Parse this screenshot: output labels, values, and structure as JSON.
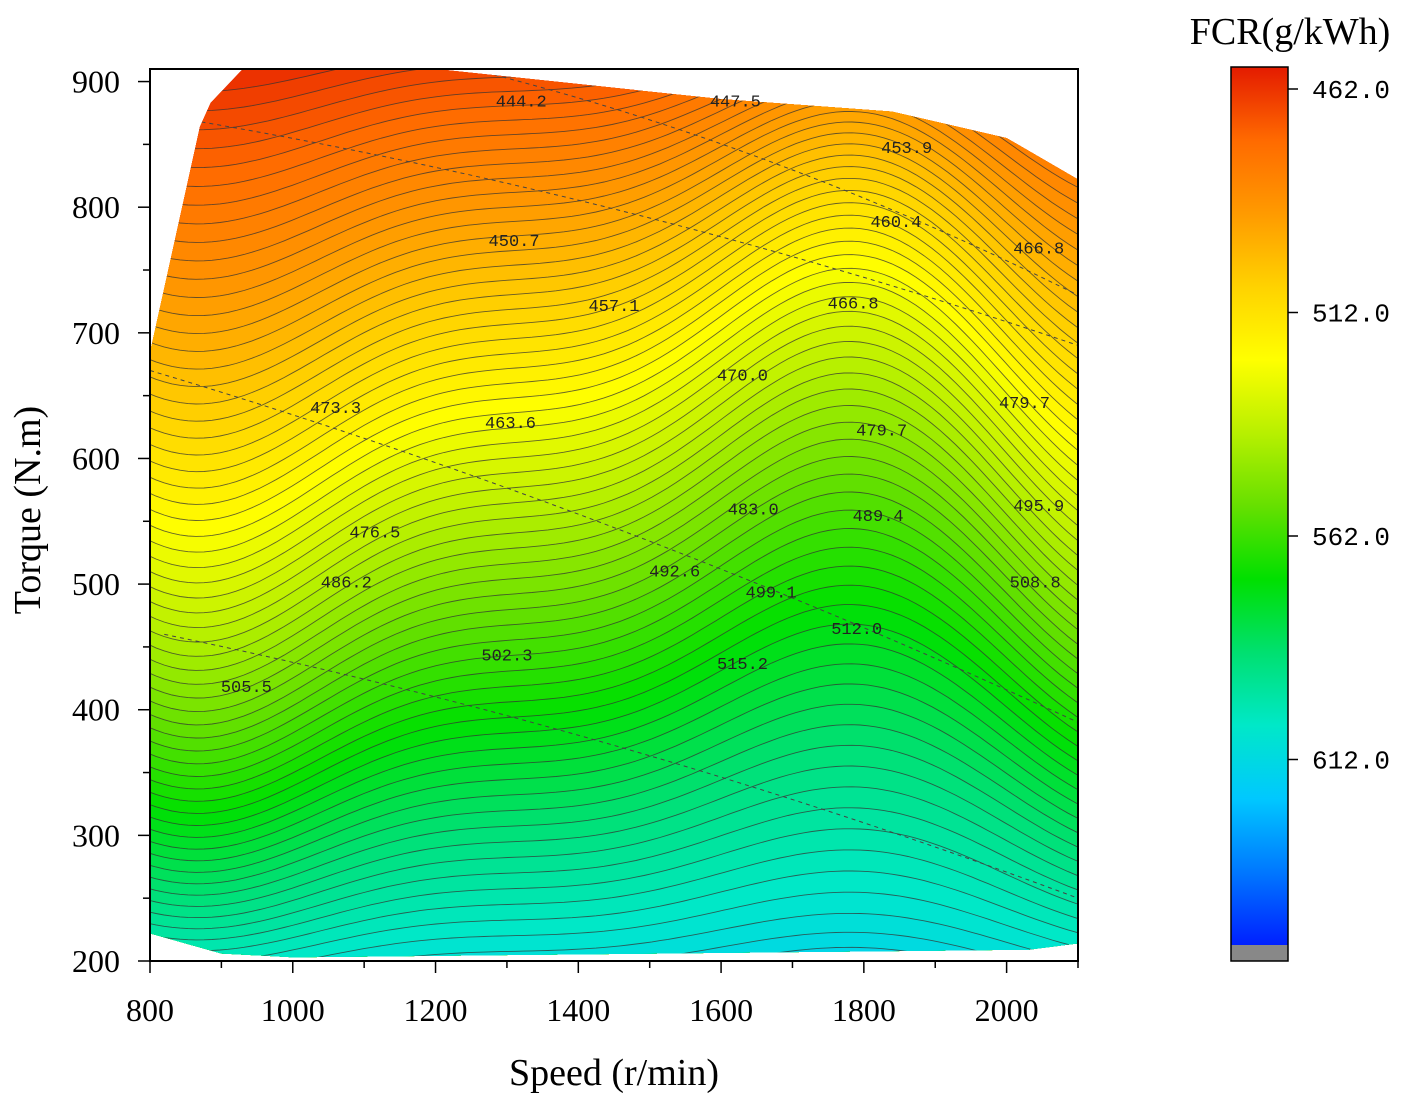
{
  "chart_data": {
    "type": "heatmap",
    "subtype": "filled-contour",
    "xlabel": "Speed (r/min)",
    "ylabel": "Torque (N.m)",
    "xlim": [
      800,
      2100
    ],
    "ylim": [
      200,
      910
    ],
    "x_ticks": [
      800,
      1000,
      1200,
      1400,
      1600,
      1800,
      2000
    ],
    "y_ticks": [
      200,
      300,
      400,
      500,
      600,
      700,
      800,
      900
    ],
    "colorbar": {
      "title": "FCR(g/kWh)",
      "range": [
        462.0,
        662.0
      ],
      "ticks": [
        "462.0",
        "512.0",
        "562.0",
        "612.0"
      ],
      "tick_values": [
        462.0,
        512.0,
        562.0,
        612.0
      ],
      "colors": [
        "#e41b00",
        "#ff6a00",
        "#ff9a00",
        "#ffd200",
        "#ffff00",
        "#b8f000",
        "#66e000",
        "#00e000",
        "#00e070",
        "#00e8c8",
        "#00c8ff",
        "#0078ff",
        "#0020ff"
      ],
      "out_of_range_color": "#888888"
    },
    "boundary": [
      {
        "x": 800,
        "y": 684
      },
      {
        "x": 870,
        "y": 864
      },
      {
        "x": 885,
        "y": 883
      },
      {
        "x": 930,
        "y": 910
      },
      {
        "x": 1200,
        "y": 910
      },
      {
        "x": 1600,
        "y": 886
      },
      {
        "x": 1840,
        "y": 876
      },
      {
        "x": 2000,
        "y": 855
      },
      {
        "x": 2100,
        "y": 822
      },
      {
        "x": 2100,
        "y": 214
      },
      {
        "x": 2030,
        "y": 209
      },
      {
        "x": 1000,
        "y": 203
      },
      {
        "x": 900,
        "y": 206
      },
      {
        "x": 800,
        "y": 222
      }
    ],
    "contour_labels": [
      {
        "text": "444.2",
        "x": 1320,
        "y": 885
      },
      {
        "text": "447.5",
        "x": 1620,
        "y": 885
      },
      {
        "text": "453.9",
        "x": 1860,
        "y": 848
      },
      {
        "text": "450.7",
        "x": 1310,
        "y": 774
      },
      {
        "text": "460.4",
        "x": 1845,
        "y": 789
      },
      {
        "text": "466.8",
        "x": 2045,
        "y": 768
      },
      {
        "text": "457.1",
        "x": 1450,
        "y": 722
      },
      {
        "text": "466.8",
        "x": 1785,
        "y": 724
      },
      {
        "text": "470.0",
        "x": 1630,
        "y": 667
      },
      {
        "text": "473.3",
        "x": 1060,
        "y": 641
      },
      {
        "text": "463.6",
        "x": 1305,
        "y": 629
      },
      {
        "text": "479.7",
        "x": 2025,
        "y": 645
      },
      {
        "text": "479.7",
        "x": 1825,
        "y": 623
      },
      {
        "text": "483.0",
        "x": 1645,
        "y": 560
      },
      {
        "text": "489.4",
        "x": 1820,
        "y": 555
      },
      {
        "text": "495.9",
        "x": 2045,
        "y": 563
      },
      {
        "text": "476.5",
        "x": 1115,
        "y": 542
      },
      {
        "text": "492.6",
        "x": 1535,
        "y": 511
      },
      {
        "text": "486.2",
        "x": 1075,
        "y": 502
      },
      {
        "text": "499.1",
        "x": 1670,
        "y": 494
      },
      {
        "text": "508.8",
        "x": 2040,
        "y": 502
      },
      {
        "text": "512.0",
        "x": 1790,
        "y": 465
      },
      {
        "text": "502.3",
        "x": 1300,
        "y": 444
      },
      {
        "text": "515.2",
        "x": 1630,
        "y": 437
      },
      {
        "text": "505.5",
        "x": 935,
        "y": 419
      }
    ]
  }
}
